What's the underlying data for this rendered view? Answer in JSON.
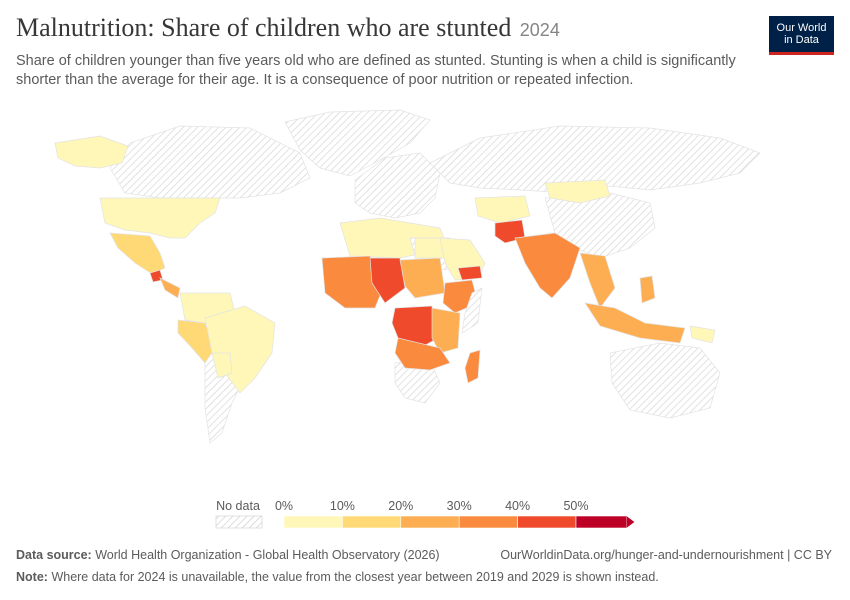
{
  "header": {
    "title": "Malnutrition: Share of children who are stunted",
    "year": "2024",
    "subtitle": "Share of children younger than five years old who are defined as stunted. Stunting is when a child is significantly shorter than the average for their age. It is a consequence of poor nutrition or repeated infection."
  },
  "logo": {
    "line1": "Our World",
    "line2": "in Data"
  },
  "legend": {
    "no_data_label": "No data",
    "ticks": [
      "0%",
      "10%",
      "20%",
      "30%",
      "40%",
      "50%"
    ],
    "bin_colors": [
      "#fff7b8",
      "#fed976",
      "#fdae52",
      "#f98a3e",
      "#ee4a2b",
      "#bd0026"
    ]
  },
  "colors": {
    "no_data_hatch": "#d9d9d9",
    "ocean": "#ffffff",
    "border": "#ffffff"
  },
  "footer": {
    "source_label": "Data source:",
    "source_text": "World Health Organization - Global Health Observatory (2026)",
    "url": "OurWorldinData.org/hunger-and-undernourishment | CC BY",
    "note_label": "Note:",
    "note_text": "Where data for 2024 is unavailable, the value from the closest year between 2019 and 2029 is shown instead."
  }
}
